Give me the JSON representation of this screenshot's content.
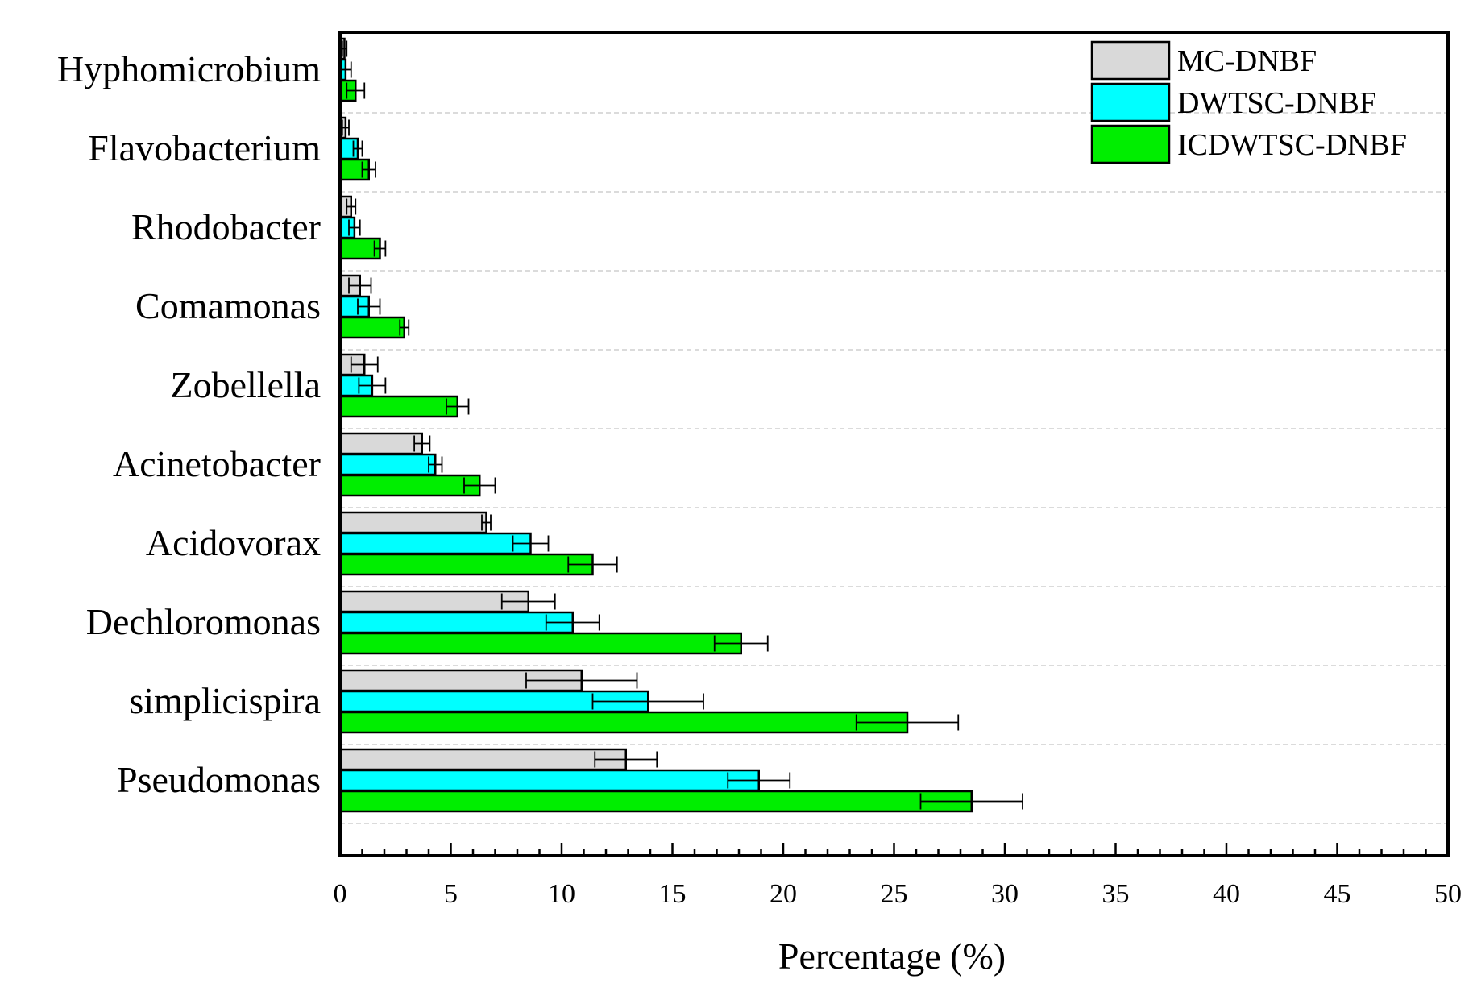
{
  "chart_data": {
    "type": "bar",
    "orientation": "horizontal",
    "title": "",
    "xlabel": "Percentage (%)",
    "ylabel": "",
    "xlim": [
      0,
      50
    ],
    "x_ticks": [
      0,
      5,
      10,
      15,
      20,
      25,
      30,
      35,
      40,
      45,
      50
    ],
    "legend_position": "top-right",
    "categories": [
      "Hyphomicrobium",
      "Flavobacterium",
      "Rhodobacter",
      "Comamonas",
      "Zobellella",
      "Acinetobacter",
      "Acidovorax",
      "Dechloromonas",
      "simplicispira",
      "Pseudomonas"
    ],
    "series": [
      {
        "name": "MC-DNBF",
        "color": "#d9d9d9",
        "values": [
          0.2,
          0.25,
          0.5,
          0.9,
          1.1,
          3.7,
          6.6,
          8.5,
          10.9,
          12.9
        ],
        "errors": [
          0.1,
          0.15,
          0.2,
          0.5,
          0.6,
          0.35,
          0.2,
          1.2,
          2.5,
          1.4
        ]
      },
      {
        "name": "DWTSC-DNBF",
        "color": "#00ffff",
        "values": [
          0.25,
          0.8,
          0.65,
          1.3,
          1.45,
          4.3,
          8.6,
          10.5,
          13.9,
          18.9
        ],
        "errors": [
          0.25,
          0.2,
          0.25,
          0.5,
          0.6,
          0.3,
          0.8,
          1.2,
          2.5,
          1.4
        ]
      },
      {
        "name": "ICDWTSC-DNBF",
        "color": "#00ee00",
        "values": [
          0.7,
          1.3,
          1.8,
          2.9,
          5.3,
          6.3,
          11.4,
          18.1,
          25.6,
          28.5
        ],
        "errors": [
          0.4,
          0.3,
          0.25,
          0.2,
          0.5,
          0.7,
          1.1,
          1.2,
          2.3,
          2.3
        ]
      }
    ]
  }
}
